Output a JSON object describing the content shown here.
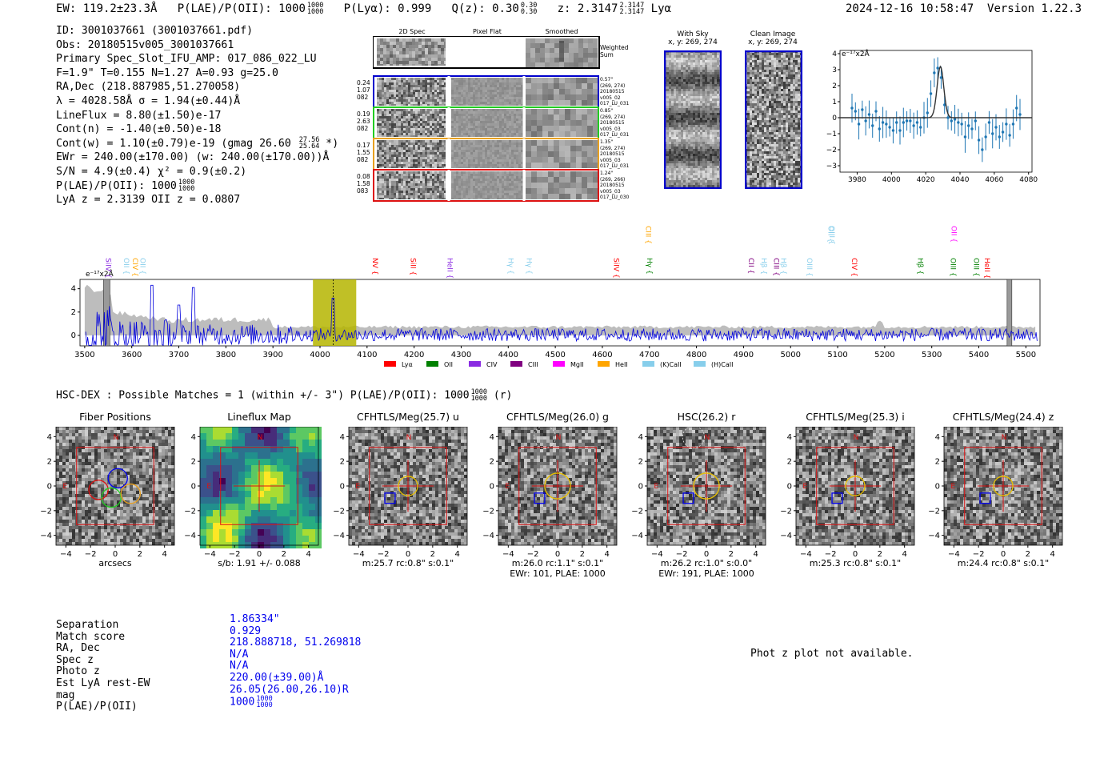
{
  "header": {
    "ew": "EW: 119.2±23.3Å",
    "plae_label": "P(LAE)/P(OII): 1000",
    "plae_hi": "1000",
    "plae_lo": "1000",
    "plya": "P(Lyα): 0.999",
    "qz_label": "Q(z): 0.30",
    "qz_hi": "0.30",
    "qz_lo": "0.30",
    "z_label": "z: 2.3147",
    "z_hi": "2.3147",
    "z_lo": "2.3147",
    "z_line": "Lyα",
    "datetime": "2024-12-16 10:58:47",
    "version": "Version 1.22.3"
  },
  "info": {
    "id": "ID: 3001037661 (3001037661.pdf)",
    "obs": "Obs: 20180515v005_3001037661",
    "primary": "Primary Spec_Slot_IFU_AMP: 017_086_022_LU",
    "fit": "F=1.9\"  T=0.155  N=1.27  A=0.93  g=25.0",
    "radec": "RA,Dec (218.887985,51.270058)",
    "wave": "λ = 4028.58Å   σ = 1.94(±0.44)Å",
    "lineflux": "LineFlux = 8.80(±1.50)e-17",
    "contn": "Cont(n) = -1.40(±0.50)e-18",
    "contw": "Cont(w) = 1.10(±0.79)e-19 (gmag 26.60",
    "contw_hi": "27.56",
    "contw_lo": "25.64",
    "contw_end": "*)",
    "ewr": "EWr = 240.00(±170.00) (w: 240.00(±170.00))Å",
    "sn": "S/N = 4.9(±0.4)  χ² = 0.9(±0.2)",
    "plae": "P(LAE)/P(OII): 1000",
    "plae_hi": "1000",
    "plae_lo": "1000",
    "lyaz": "LyA z = 2.3139   OII z = 0.0807"
  },
  "cutouts": {
    "col_2d": "2D Spec",
    "col_flat": "Pixel Flat",
    "col_smooth": "Smoothed",
    "weighted": "Weighted\nSum",
    "rows": [
      {
        "left": [
          "0.24",
          "1.07",
          "082"
        ],
        "right": [
          "0.57\"",
          "(269, 274)",
          "20180515",
          "v005_02",
          "017_LU_031"
        ],
        "color": "#0000cc"
      },
      {
        "left": [
          "0.19",
          "2.63",
          "082"
        ],
        "right": [
          "0.85\"",
          "(269, 274)",
          "20180515",
          "v005_03",
          "017_LU_031"
        ],
        "color": "#22cc22"
      },
      {
        "left": [
          "0.17",
          "1.55",
          "082"
        ],
        "right": [
          "1.35\"",
          "(269, 274)",
          "20180515",
          "v005_03",
          "017_LU_031"
        ],
        "color": "#e8a020"
      },
      {
        "left": [
          "0.08",
          "1.58",
          "083"
        ],
        "right": [
          "1.24\"",
          "(269, 266)",
          "20180515",
          "v005_03",
          "017_LU_030"
        ],
        "color": "#dd1111"
      }
    ]
  },
  "sky": {
    "with_sky": "With Sky",
    "with_sky_xy": "x, y: 269, 274",
    "clean": "Clean Image",
    "clean_xy": "x, y: 269, 274"
  },
  "line_fit": {
    "ylabel": "e⁻¹⁷x2Å",
    "yticks": [
      "4",
      "3",
      "2",
      "1",
      "0",
      "−1",
      "−2",
      "−3"
    ],
    "xticks": [
      "3980",
      "4000",
      "4020",
      "4040",
      "4060",
      "4080"
    ]
  },
  "spectrum": {
    "ylabel": "e⁻¹⁷x2Å",
    "yticks": [
      "4",
      "2",
      "0"
    ],
    "xticks": [
      "3500",
      "3600",
      "3700",
      "3800",
      "3900",
      "4000",
      "4100",
      "4200",
      "4300",
      "4400",
      "4500",
      "4600",
      "4700",
      "4800",
      "4900",
      "5000",
      "5100",
      "5200",
      "5300",
      "5400",
      "5500"
    ],
    "legend": [
      {
        "label": "Lyα",
        "color": "#ff0000"
      },
      {
        "label": "OII",
        "color": "#008000"
      },
      {
        "label": "CIV",
        "color": "#8a2be2"
      },
      {
        "label": "CIII",
        "color": "#800080"
      },
      {
        "label": "MgII",
        "color": "#ff00ff"
      },
      {
        "label": "HeII",
        "color": "#ffa500"
      },
      {
        "label": "(K)CaII",
        "color": "#87ceeb"
      },
      {
        "label": "(H)CaII",
        "color": "#87ceeb"
      }
    ],
    "line_marks": [
      {
        "label": "SiIV",
        "color": "#8a2be2",
        "lam": 3540
      },
      {
        "label": "OII",
        "color": "#87ceeb",
        "lam": 3578
      },
      {
        "label": "CIV",
        "color": "#ffa500",
        "lam": 3597
      },
      {
        "label": "OII",
        "color": "#87ceeb",
        "lam": 3613
      },
      {
        "label": "NV",
        "color": "#ff0000",
        "lam": 4107
      },
      {
        "label": "SiII",
        "color": "#ff0000",
        "lam": 4188
      },
      {
        "label": "HeII",
        "color": "#8a2be2",
        "lam": 4266
      },
      {
        "label": "Hγ",
        "color": "#87ceeb",
        "lam": 4395
      },
      {
        "label": "Hγ",
        "color": "#87ceeb",
        "lam": 4434
      },
      {
        "label": "SiIV",
        "color": "#ff0000",
        "lam": 4620
      },
      {
        "label": "CIII",
        "color": "#ffa500",
        "lam": 4688
      },
      {
        "label": "Hγ",
        "color": "#008000",
        "lam": 4690
      },
      {
        "label": "CII",
        "color": "#800080",
        "lam": 4906
      },
      {
        "label": "Hβ",
        "color": "#87ceeb",
        "lam": 4933
      },
      {
        "label": "CIII",
        "color": "#800080",
        "lam": 4960
      },
      {
        "label": "Hβ",
        "color": "#87ceeb",
        "lam": 4975
      },
      {
        "label": "OIII",
        "color": "#87ceeb",
        "lam": 5030
      },
      {
        "label": "OII",
        "color": "#87ceeb",
        "lam": 5075
      },
      {
        "label": "OIII",
        "color": "#87ceeb",
        "lam": 5078
      },
      {
        "label": "CIV",
        "color": "#ff0000",
        "lam": 5125
      },
      {
        "label": "Hβ",
        "color": "#008000",
        "lam": 5266
      },
      {
        "label": "OIII",
        "color": "#008000",
        "lam": 5335
      },
      {
        "label": "OII",
        "color": "#ff00ff",
        "lam": 5337
      },
      {
        "label": "OIII",
        "color": "#008000",
        "lam": 5385
      },
      {
        "label": "HeII",
        "color": "#ff0000",
        "lam": 5408
      }
    ]
  },
  "chart_data": [
    {
      "type": "scatter",
      "title": "",
      "xlabel": "",
      "ylabel": "e⁻¹⁷x2Å",
      "xlim": [
        3970,
        4082
      ],
      "ylim": [
        -3.4,
        4.2
      ],
      "x": [
        3977,
        3979,
        3981,
        3983,
        3985,
        3987,
        3989,
        3991,
        3993,
        3995,
        3997,
        3999,
        4001,
        4003,
        4005,
        4007,
        4009,
        4011,
        4013,
        4015,
        4017,
        4019,
        4021,
        4023,
        4025,
        4027,
        4029,
        4031,
        4033,
        4035,
        4037,
        4039,
        4041,
        4043,
        4045,
        4047,
        4049,
        4051,
        4053,
        4055,
        4057,
        4059,
        4061,
        4063,
        4065,
        4067,
        4069,
        4071,
        4073,
        4075
      ],
      "y": [
        0.6,
        0.4,
        -0.4,
        0.5,
        -0.2,
        0.2,
        -0.5,
        0.4,
        -0.7,
        -0.3,
        -0.4,
        -0.6,
        -0.8,
        -0.3,
        -0.8,
        -0.3,
        -0.2,
        -0.2,
        -0.5,
        -0.3,
        -0.6,
        0.0,
        0.3,
        1.5,
        2.8,
        3.1,
        2.5,
        0.8,
        0.0,
        -0.2,
        -0.1,
        -0.3,
        -0.4,
        -1.2,
        -0.5,
        -0.7,
        -0.2,
        -1.4,
        -2.0,
        -1.2,
        -0.3,
        -1.0,
        -0.6,
        -1.2,
        -0.9,
        -0.4,
        -1.1,
        -0.4,
        0.6,
        0.2
      ],
      "fit_peak": 3.2,
      "fit_center": 4028.58,
      "fit_sigma": 1.94
    },
    {
      "type": "line",
      "title": "",
      "xlabel": "",
      "ylabel": "e⁻¹⁷x2Å",
      "xlim": [
        3490,
        5530
      ],
      "ylim": [
        -0.9,
        4.8
      ],
      "series": [
        {
          "name": "flux",
          "color": "#0000dd"
        },
        {
          "name": "noise",
          "color": "#bbbbbb"
        }
      ],
      "highlight": [
        3985,
        4077
      ],
      "emission_peaks": [
        {
          "x": 3642,
          "y": 4.3
        },
        {
          "x": 3700,
          "y": 2.6
        },
        {
          "x": 3730,
          "y": 4.1
        },
        {
          "x": 4028,
          "y": 3.2
        }
      ]
    }
  ],
  "hsc": {
    "title": "HSC-DEX : Possible Matches = 1 (within +/- 3\")  P(LAE)/P(OII): 1000",
    "title_hi": "1000",
    "title_lo": "1000",
    "title_end": "(r)",
    "panels": [
      {
        "title": "Fiber Positions",
        "cap1": "arcsecs",
        "cap2": "",
        "mode": "fiber"
      },
      {
        "title": "Lineflux Map",
        "cap1": "s/b: 1.91 +/- 0.088",
        "cap2": "",
        "mode": "flux"
      },
      {
        "title": "CFHTLS/Meg(25.7) u",
        "cap1": "m:25.7 rc:0.8\"  s:0.1\"",
        "cap2": "",
        "mode": "img"
      },
      {
        "title": "CFHTLS/Meg(26.0) g",
        "cap1": "m:26.0 rc:1.1\"  s:0.1\"",
        "cap2": "EWr: 101, PLAE: 1000",
        "mode": "img"
      },
      {
        "title": "HSC(26.2) r",
        "cap1": "m:26.2 rc:1.0\"  s:0.0\"",
        "cap2": "EWr: 191, PLAE: 1000",
        "mode": "img"
      },
      {
        "title": "CFHTLS/Meg(25.3) i",
        "cap1": "m:25.3 rc:0.8\"  s:0.1\"",
        "cap2": "",
        "mode": "img"
      },
      {
        "title": "CFHTLS/Meg(24.4) z",
        "cap1": "m:24.4 rc:0.8\"  s:0.1\"",
        "cap2": "",
        "mode": "img"
      }
    ],
    "axis_ticks": [
      "4",
      "2",
      "0",
      "−2",
      "−4"
    ],
    "x_ticks": [
      "−4",
      "−2",
      "0",
      "2",
      "4"
    ],
    "compass_n": "N",
    "compass_e": "E"
  },
  "match": {
    "labels": [
      "Separation",
      "Match score",
      "RA, Dec",
      "Spec z",
      "Photo z",
      "Est LyA rest-EW",
      "mag",
      "P(LAE)/P(OII)"
    ],
    "values": [
      "1.86334\"",
      "0.929",
      "218.888718, 51.269818",
      "N/A",
      "N/A",
      "220.00(±39.00)Å",
      "26.05(26.00,26.10)R",
      "1000"
    ],
    "plae_hi": "1000",
    "plae_lo": "1000",
    "photz_msg": "Phot z plot not available."
  }
}
